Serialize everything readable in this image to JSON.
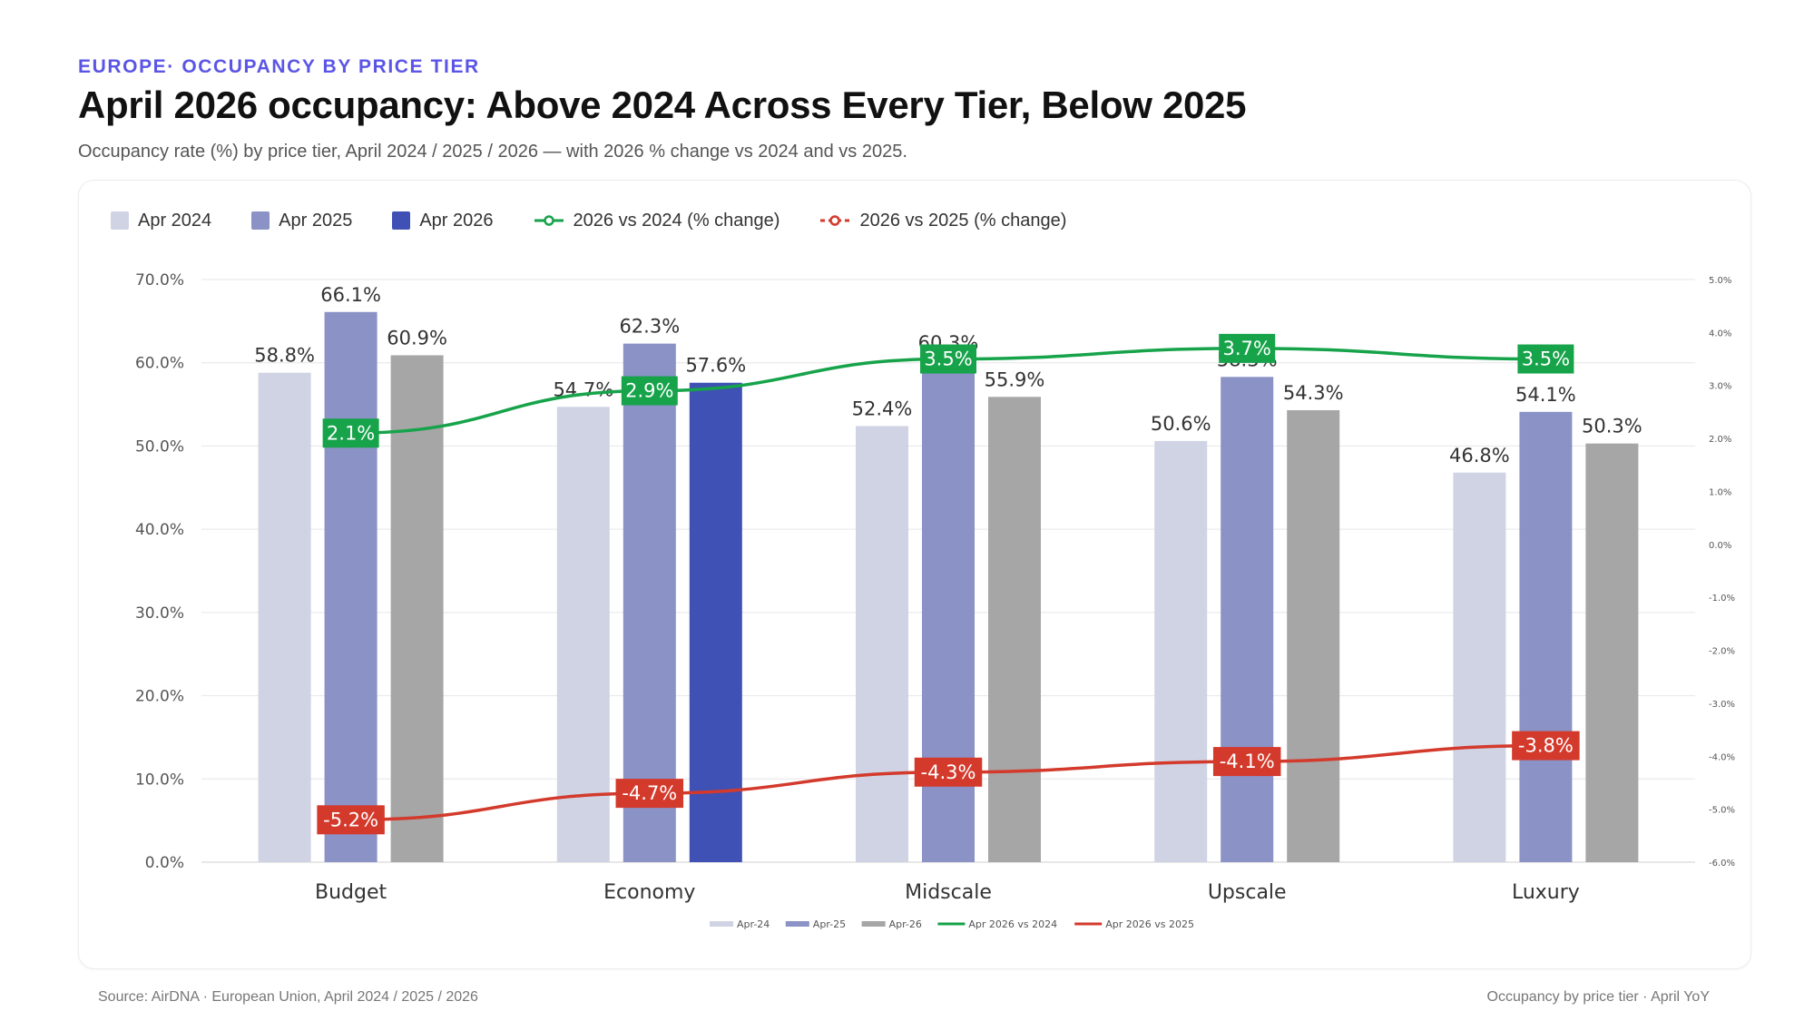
{
  "header": {
    "kicker": "EUROPE· OCCUPANCY BY PRICE TIER",
    "title": "April 2026 occupancy: Above 2024 Across Every Tier, Below 2025",
    "subtitle": "Occupancy rate (%) by price tier, April 2024 / 2025 / 2026 — with 2026 % change vs 2024 and vs 2025."
  },
  "legend_top": [
    {
      "label": "Apr 2024",
      "kind": "swatch",
      "color": "#d0d3e4"
    },
    {
      "label": "Apr 2025",
      "kind": "swatch",
      "color": "#8a92c6"
    },
    {
      "label": "Apr 2026",
      "kind": "swatch",
      "color": "#3f51b5"
    },
    {
      "label": "2026 vs 2024 (% change)",
      "kind": "line",
      "color": "#16a34a"
    },
    {
      "label": "2026 vs 2025 (% change)",
      "kind": "line-dashed",
      "color": "#d33a2c"
    }
  ],
  "footer": {
    "source": "Source: AirDNA · European Union, April 2024 / 2025 / 2026",
    "note": "Occupancy by price tier · April YoY"
  },
  "chart_data": {
    "type": "bar",
    "categories": [
      "Budget",
      "Economy",
      "Midscale",
      "Upscale",
      "Luxury"
    ],
    "series": [
      {
        "name": "Apr-24",
        "values": [
          58.8,
          54.7,
          52.4,
          50.6,
          46.8
        ],
        "labels": [
          "58.8%",
          "54.7%",
          "52.4%",
          "50.6%",
          "46.8%"
        ]
      },
      {
        "name": "Apr-25",
        "values": [
          66.1,
          62.3,
          60.3,
          58.3,
          54.1
        ],
        "labels": [
          "66.1%",
          "62.3%",
          "60.3%",
          "58.3%",
          "54.1%"
        ]
      },
      {
        "name": "Apr-26",
        "values": [
          60.9,
          57.6,
          55.9,
          54.3,
          50.3
        ],
        "labels": [
          "60.9%",
          "57.6%",
          "55.9%",
          "54.3%",
          "50.3%"
        ],
        "highlight_index": 1,
        "highlight_color": "#3f51b5"
      }
    ],
    "lines": [
      {
        "name": "Apr 2026 vs 2024",
        "axis": "secondary",
        "values": [
          2.1,
          2.9,
          3.5,
          3.7,
          3.5
        ],
        "labels": [
          "2.1%",
          "2.9%",
          "3.5%",
          "3.7%",
          "3.5%"
        ]
      },
      {
        "name": "Apr 2026 vs 2025",
        "axis": "secondary",
        "values": [
          -5.2,
          -4.7,
          -4.3,
          -4.1,
          -3.8
        ],
        "labels": [
          "-5.2%",
          "-4.7%",
          "-4.3%",
          "-4.1%",
          "-3.8%"
        ]
      }
    ],
    "y_axis": {
      "min": 0,
      "max": 70,
      "step": 10,
      "tick_labels": [
        "0.0%",
        "10.0%",
        "20.0%",
        "30.0%",
        "40.0%",
        "50.0%",
        "60.0%",
        "70.0%"
      ]
    },
    "y2_axis": {
      "min": -6,
      "max": 5,
      "step": 1,
      "tick_labels": [
        "-6.0%",
        "-5.0%",
        "-4.0%",
        "-3.0%",
        "-2.0%",
        "-1.0%",
        "0.0%",
        "1.0%",
        "2.0%",
        "3.0%",
        "4.0%",
        "5.0%"
      ]
    },
    "grid": true,
    "colors": {
      "apr24": "#d0d3e4",
      "apr25": "#8a92c6",
      "apr26": "#a6a6a6",
      "vs2024": "#16a34a",
      "vs2025": "#d33a2c"
    },
    "bottom_legend": [
      "Apr-24",
      "Apr-25",
      "Apr-26",
      "Apr 2026 vs 2024",
      "Apr 2026 vs 2025"
    ]
  }
}
